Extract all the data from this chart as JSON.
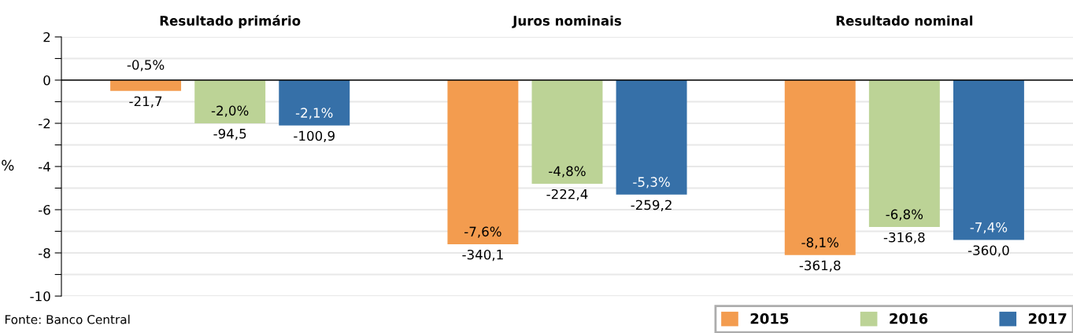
{
  "chart_data": {
    "type": "bar",
    "categories": [
      "Resultado primário",
      "Juros nominais",
      "Resultado nominal"
    ],
    "ylabel": "%",
    "series": [
      {
        "name": "2015",
        "color": "#f39c4f",
        "values": [
          -0.5,
          -7.6,
          -8.1
        ],
        "value_labels": [
          "-0,5%\n-21,7",
          "-7,6%\n-340,1",
          "-8,1%\n-361,8"
        ]
      },
      {
        "name": "2016",
        "color": "#bcd396",
        "values": [
          -2.0,
          -4.8,
          -6.8
        ],
        "value_labels": [
          "-2,0%\n-94,5",
          "-4,8%\n-222,4",
          "-6,8%\n-316,8"
        ]
      },
      {
        "name": "2017",
        "color": "#3670a8",
        "values": [
          -2.1,
          -5.3,
          -7.4
        ],
        "value_labels": [
          "-2,1%\n-100,9",
          "-5,3%\n-259,2",
          "-7,4%\n-360,0"
        ]
      }
    ],
    "ylim": [
      -10,
      2
    ],
    "yticks": [
      -10,
      {
        "value": -9,
        "label": null
      },
      -8,
      {
        "value": -7,
        "label": null
      },
      -6,
      {
        "value": -5,
        "label": null
      },
      -4,
      {
        "value": -3,
        "label": null
      },
      -2,
      {
        "value": -1,
        "label": null
      },
      0,
      {
        "value": 1,
        "label": null
      },
      2
    ],
    "grid": "y",
    "legend": "bottom right",
    "annotations": [
      "Fonte: Banco Central"
    ]
  }
}
